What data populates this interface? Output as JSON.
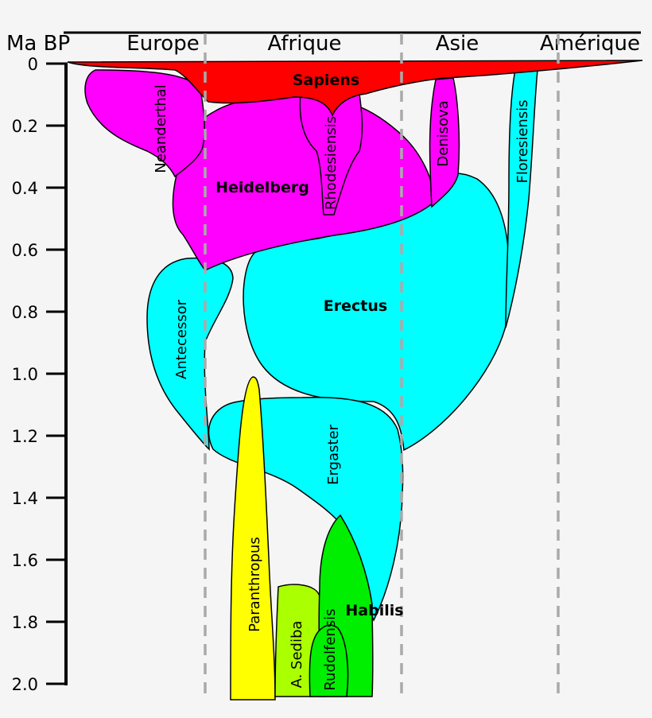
{
  "axis_title": "Ma BP",
  "regions": [
    "Europe",
    "Afrique",
    "Asie",
    "Amérique"
  ],
  "ticks": [
    "0",
    "0.2",
    "0.4",
    "0.6",
    "0.8",
    "1.0",
    "1.2",
    "1.4",
    "1.6",
    "1.8",
    "2.0"
  ],
  "species": {
    "sapiens": "Sapiens",
    "neanderthal": "Neanderthal",
    "heidelberg": "Heidelberg",
    "rhodesiensis": "Rhodesiensis",
    "denisova": "Denisova",
    "floresiensis": "Floresiensis",
    "erectus": "Erectus",
    "antecessor": "Antecessor",
    "ergaster": "Ergaster",
    "paranthropus": "Paranthropus",
    "sediba": "A. Sediba",
    "rudolfensis": "Rudolfensis",
    "habilis": "Habilis"
  },
  "colors": {
    "sapiens": "#ff0000",
    "archaic": "#ff00ff",
    "erectus": "#00ffff",
    "paranthropus": "#ffff00",
    "sediba": "#aaff00",
    "habilis": "#00ee00"
  }
}
